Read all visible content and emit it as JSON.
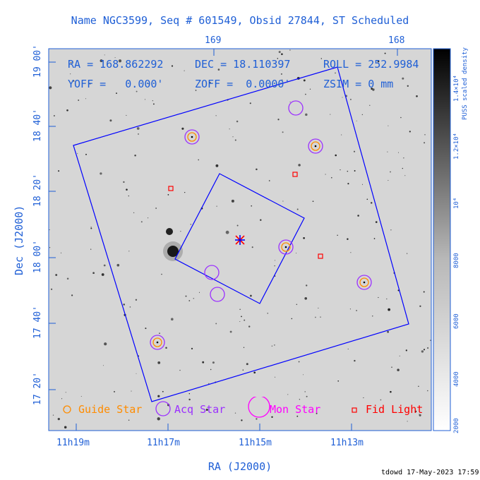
{
  "title": "Name NGC3599, Seq # 601549, Obsid 27844, ST Scheduled",
  "axes": {
    "x_label": "RA (J2000)",
    "y_label": "Dec (J2000)",
    "x_ticks_bottom": [
      "11h19m",
      "11h17m",
      "11h15m",
      "11h13m"
    ],
    "x_ticks_top": [
      "169",
      "168"
    ],
    "y_ticks": [
      "19 00'",
      "18 40'",
      "18 20'",
      "18 00'",
      "17 40'",
      "17 20'"
    ]
  },
  "info": {
    "ra": "RA = 168.862292",
    "dec": "DEC = 18.110397",
    "roll": "ROLL = 252.9984",
    "yoff": "YOFF =   0.000'",
    "zoff": "ZOFF =  0.0000'",
    "zsim": "ZSIM = 0 mm"
  },
  "colorbar": {
    "label": "PUSS scaled density",
    "ticks": [
      "2000",
      "4000",
      "6000",
      "8000",
      "10⁴",
      "1.2×10⁴",
      "1.4×10⁴"
    ]
  },
  "legend": {
    "guide": "Guide Star",
    "acq": "Acq Star",
    "mon": "Mon Star",
    "fid": "Fid Light"
  },
  "colors": {
    "axis_blue": "#1f5fd6",
    "guide": "#ff8c00",
    "acq": "#9b30ff",
    "mon": "#ff00ff",
    "fid": "#ff0000",
    "field": "#0000ff"
  },
  "footer": "tdowd 17-May-2023 17:59"
}
